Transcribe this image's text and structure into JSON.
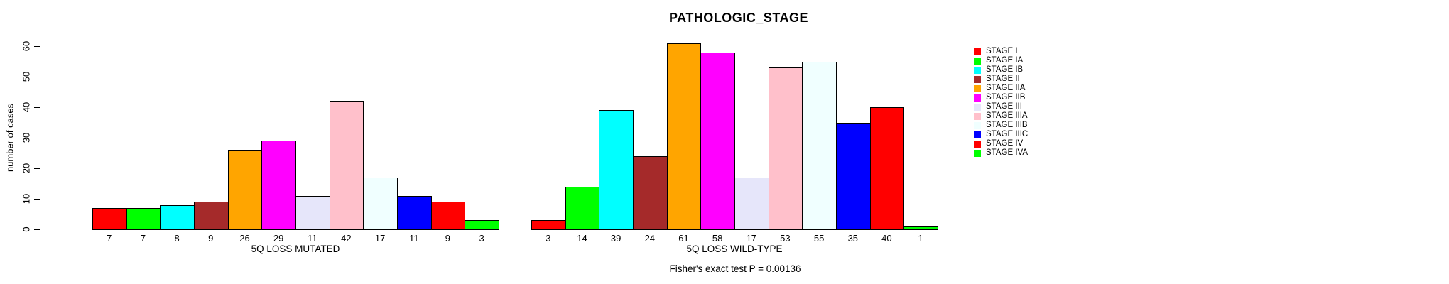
{
  "title": "PATHOLOGIC_STAGE",
  "chart_data": {
    "type": "bar",
    "title": "PATHOLOGIC_STAGE",
    "ylabel": "number of cases",
    "xlabel": "",
    "ylim": [
      0,
      60
    ],
    "yticks": [
      0,
      10,
      20,
      30,
      40,
      50,
      60
    ],
    "grid": false,
    "legend_position": "right",
    "legend": [
      {
        "label": "STAGE I",
        "color": "#FF0000"
      },
      {
        "label": "STAGE IA",
        "color": "#00FF00"
      },
      {
        "label": "STAGE IB",
        "color": "#00FFFF"
      },
      {
        "label": "STAGE II",
        "color": "#A52A2A"
      },
      {
        "label": "STAGE IIA",
        "color": "#FFA500"
      },
      {
        "label": "STAGE IIB",
        "color": "#FF00FF"
      },
      {
        "label": "STAGE III",
        "color": "#E6E6FA"
      },
      {
        "label": "STAGE IIIA",
        "color": "#FFC0CB"
      },
      {
        "label": "STAGE IIIB",
        "color": "#F0FFFF"
      },
      {
        "label": "STAGE IIIC",
        "color": "#0000FF"
      },
      {
        "label": "STAGE IV",
        "color": "#FF0000"
      },
      {
        "label": "STAGE IVA",
        "color": "#00FF00"
      }
    ],
    "groups": [
      {
        "label": "5Q LOSS MUTATED",
        "values": [
          7,
          7,
          8,
          9,
          26,
          29,
          11,
          42,
          17,
          11,
          9,
          3
        ]
      },
      {
        "label": "5Q LOSS WILD-TYPE",
        "values": [
          3,
          14,
          39,
          24,
          61,
          58,
          17,
          53,
          55,
          35,
          40,
          1
        ]
      }
    ],
    "footer": "Fisher's exact test P = 0.00136"
  }
}
